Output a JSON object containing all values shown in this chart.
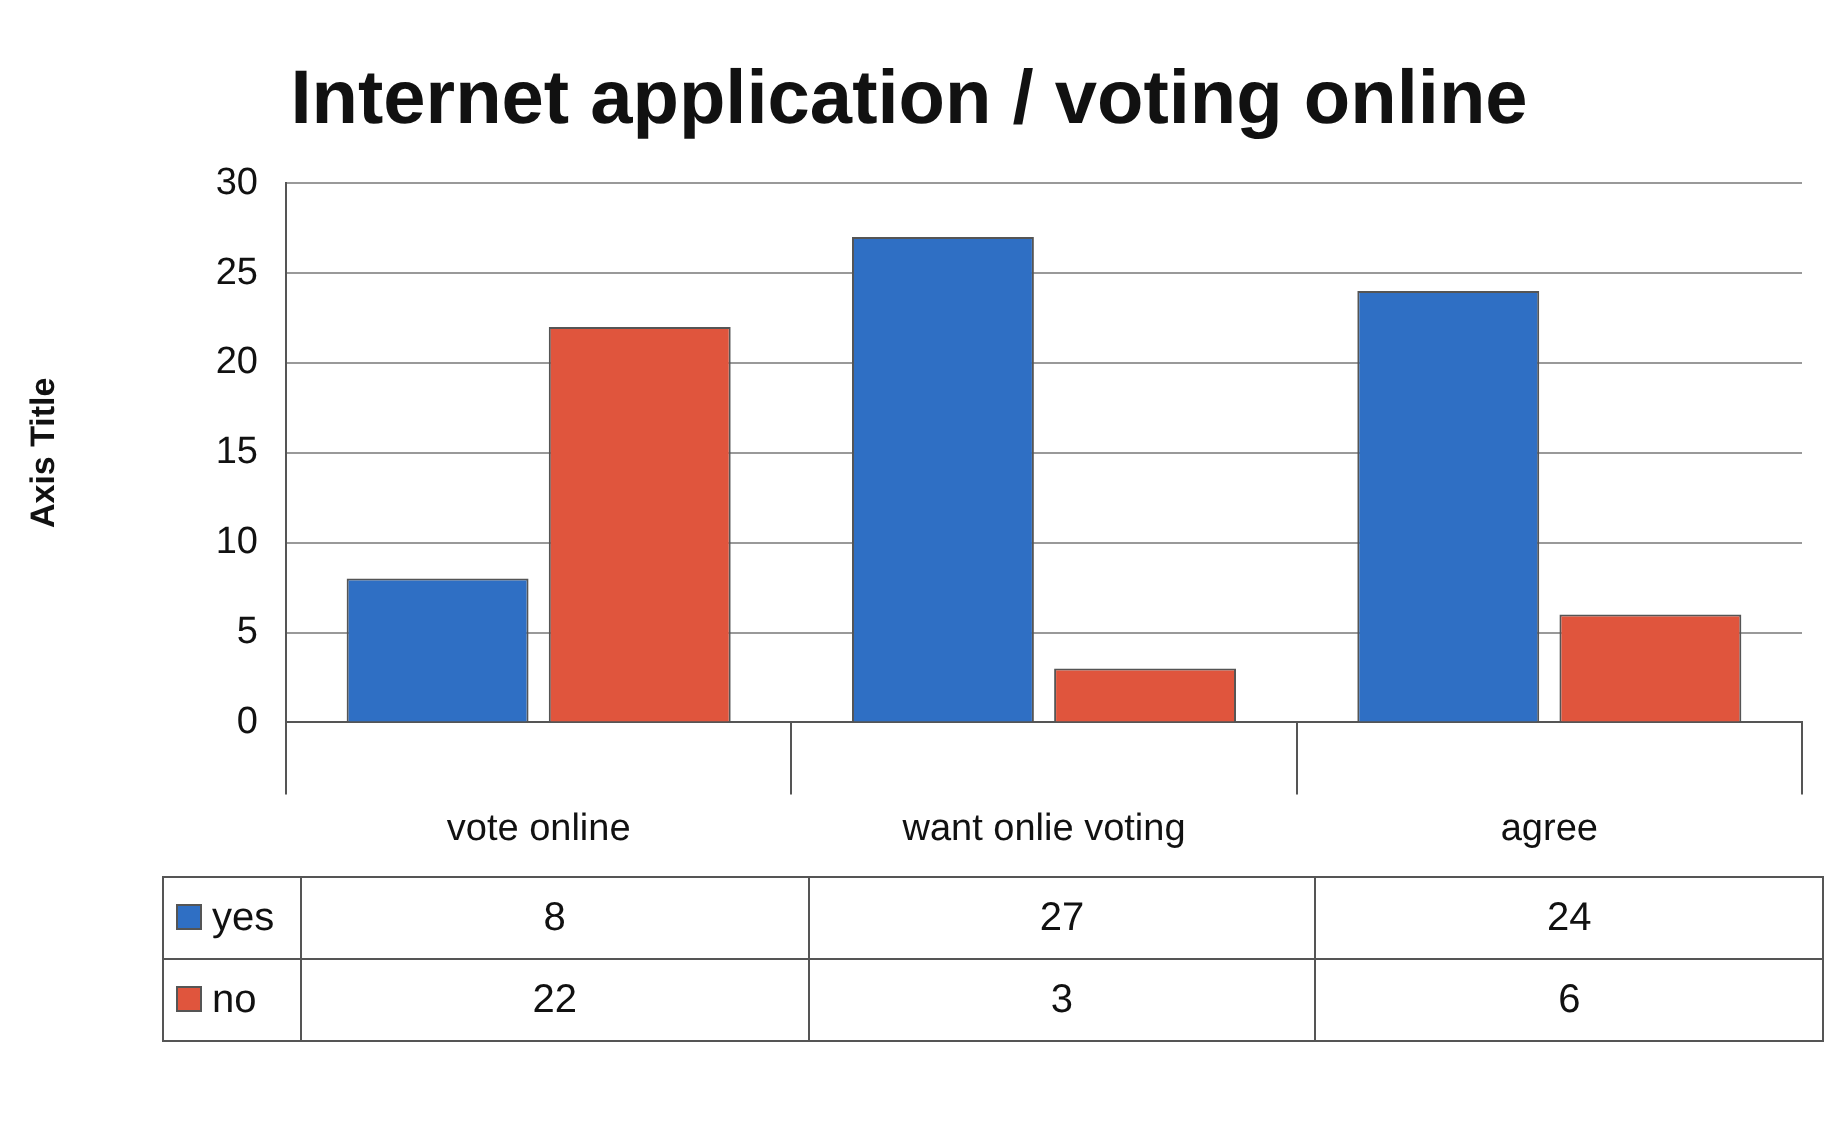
{
  "chart_data": {
    "type": "bar",
    "title": "Internet application / voting online",
    "ylabel": "Axis Title",
    "categories": [
      "vote online",
      "want onlie voting",
      "agree"
    ],
    "series": [
      {
        "name": "yes",
        "color": "#2f6fc4",
        "values": [
          8,
          27,
          24
        ]
      },
      {
        "name": "no",
        "color": "#e0553d",
        "values": [
          22,
          3,
          6
        ]
      }
    ],
    "ylim": [
      0,
      30
    ],
    "yticks": [
      0,
      5,
      10,
      15,
      20,
      25,
      30
    ],
    "grid": "y",
    "legend": "bottom",
    "data_labels": true
  }
}
